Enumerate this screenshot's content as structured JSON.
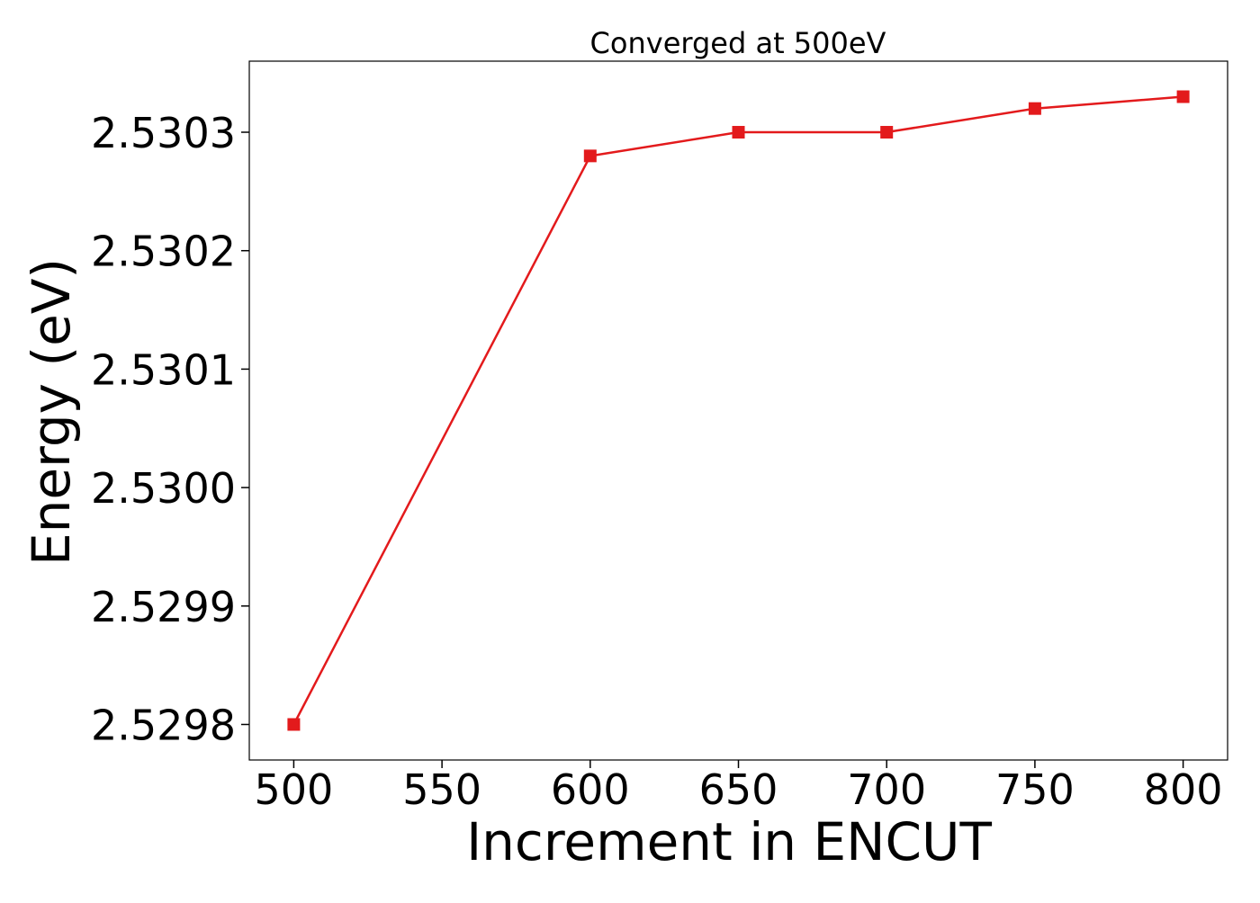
{
  "chart_data": {
    "type": "line",
    "title": "Converged at 500eV",
    "xlabel": "Increment in ENCUT",
    "ylabel": "Energy (eV)",
    "x": [
      500,
      600,
      650,
      700,
      750,
      800
    ],
    "series": [
      {
        "values": [
          2.5298,
          2.53028,
          2.5303,
          2.5303,
          2.53032,
          2.53033
        ]
      }
    ],
    "xticks": [
      500,
      550,
      600,
      650,
      700,
      750,
      800
    ],
    "xtick_labels": [
      "500",
      "550",
      "600",
      "650",
      "700",
      "750",
      "800"
    ],
    "yticks": [
      2.5298,
      2.5299,
      2.53,
      2.5301,
      2.5302,
      2.5303
    ],
    "ytick_labels": [
      "2.5298",
      "2.5299",
      "2.5300",
      "2.5301",
      "2.5302",
      "2.5303"
    ],
    "xlim": [
      485,
      815
    ],
    "ylim": [
      2.52977,
      2.53036
    ],
    "grid": false,
    "marker": "square",
    "color": "#e31a1c"
  }
}
